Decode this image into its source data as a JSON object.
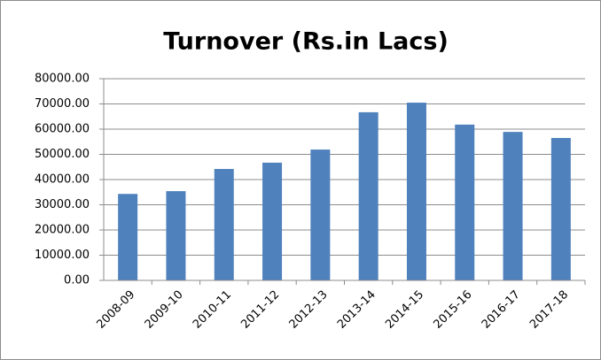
{
  "chart_data": {
    "type": "bar",
    "title": "Turnover (Rs.in Lacs)",
    "categories": [
      "2008-09",
      "2009-10",
      "2010-11",
      "2011-12",
      "2012-13",
      "2013-14",
      "2014-15",
      "2015-16",
      "2016-17",
      "2017-18"
    ],
    "values": [
      34300,
      35400,
      44200,
      46700,
      51900,
      66700,
      70500,
      61800,
      58900,
      56500
    ],
    "color": "#4f81bd",
    "ylim": [
      0,
      80000
    ],
    "yticks": [
      {
        "value": 0,
        "label": "0.00"
      },
      {
        "value": 10000,
        "label": "10000.00"
      },
      {
        "value": 20000,
        "label": "20000.00"
      },
      {
        "value": 30000,
        "label": "30000.00"
      },
      {
        "value": 40000,
        "label": "40000.00"
      },
      {
        "value": 50000,
        "label": "50000.00"
      },
      {
        "value": 60000,
        "label": "60000.00"
      },
      {
        "value": 70000,
        "label": "70000.00"
      },
      {
        "value": 80000,
        "label": "80000.00"
      }
    ],
    "grid": true
  }
}
